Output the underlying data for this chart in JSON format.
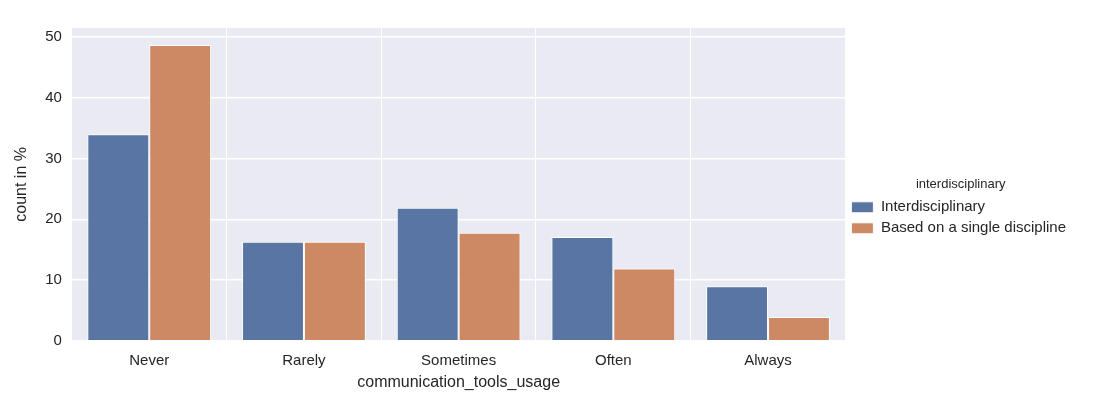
{
  "chart_data": {
    "type": "bar",
    "xlabel": "communication_tools_usage",
    "ylabel": "count in %",
    "legend_title": "interdisciplinary",
    "categories": [
      "Never",
      "Rarely",
      "Sometimes",
      "Often",
      "Always"
    ],
    "series": [
      {
        "name": "Interdisciplinary",
        "color": "#5875a4",
        "values": [
          34.0,
          16.3,
          21.9,
          17.1,
          9.0
        ]
      },
      {
        "name": "Based on a single discipline",
        "color": "#cc8963",
        "values": [
          48.7,
          16.3,
          17.8,
          11.9,
          3.9
        ]
      }
    ],
    "ylim": [
      0,
      51.5
    ],
    "yticks": [
      0,
      10,
      20,
      30,
      40,
      50
    ],
    "grid": true,
    "legend": "right"
  }
}
